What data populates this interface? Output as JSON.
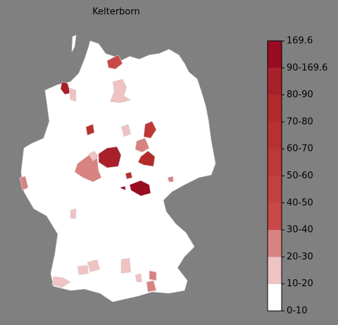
{
  "title": "Kelterborn",
  "colorbar": {
    "labels": [
      "0-10",
      "10-20",
      "20-30",
      "30-40",
      "40-50",
      "50-60",
      "60-70",
      "70-80",
      "80-90",
      "90-169.6",
      "169.6"
    ],
    "colors": [
      "#ffffff",
      "#efc3c3",
      "#d98282",
      "#c94848",
      "#c44040",
      "#be3838",
      "#b83030",
      "#b22a2a",
      "#a8202a",
      "#990c22"
    ]
  }
}
